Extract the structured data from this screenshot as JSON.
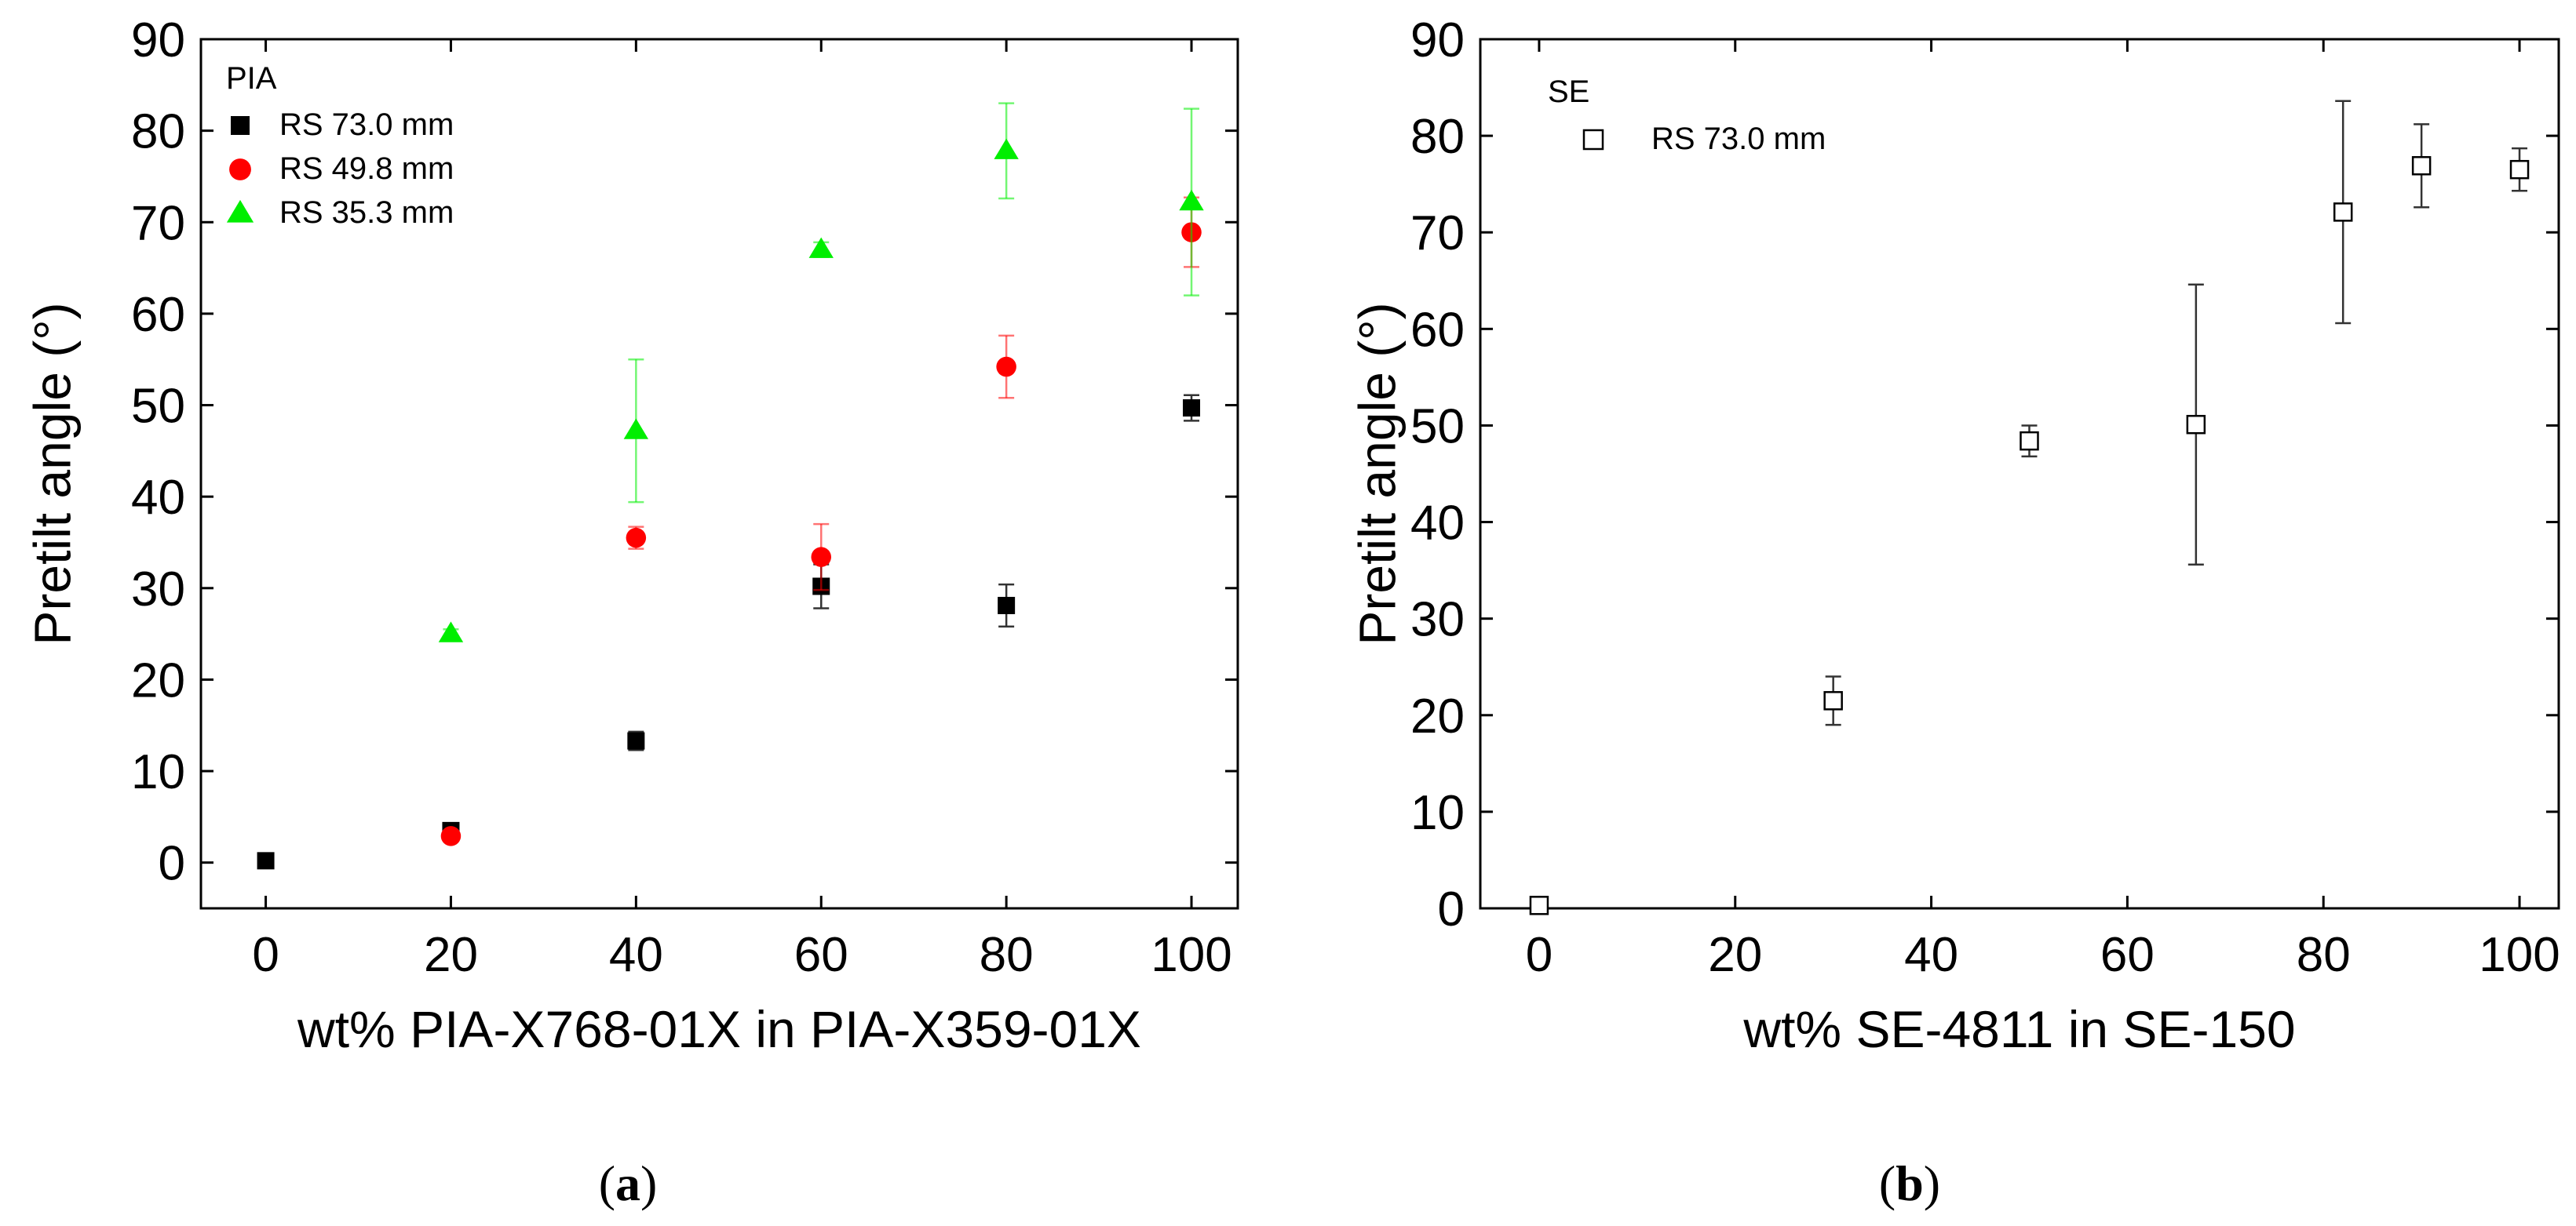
{
  "chart_data": [
    {
      "type": "scatter",
      "xlabel": "wt% PIA-X768-01X in PIA-X359-01X",
      "ylabel": "Pretilt angle (°)",
      "xlim": [
        -7,
        105
      ],
      "ylim": [
        -5,
        90
      ],
      "xticks": [
        0,
        20,
        40,
        60,
        80,
        100
      ],
      "yticks": [
        0,
        10,
        20,
        30,
        40,
        50,
        60,
        70,
        80,
        90
      ],
      "legend_title": "PIA",
      "legend_position": "top-left",
      "caption_letter": "a",
      "series": [
        {
          "name": "RS 73.0 mm",
          "marker": "square-filled",
          "color": "#000000",
          "x": [
            0,
            20,
            40,
            60,
            80,
            100
          ],
          "y": [
            0.2,
            3.5,
            13.3,
            30.2,
            28.1,
            49.7
          ],
          "err": [
            0.5,
            0.5,
            1.0,
            2.4,
            2.3,
            1.4
          ]
        },
        {
          "name": "RS 49.8 mm",
          "marker": "circle-filled",
          "color": "#ff0000",
          "x": [
            20,
            40,
            60,
            80,
            100
          ],
          "y": [
            2.9,
            35.5,
            33.4,
            54.2,
            68.9
          ],
          "err": [
            0.4,
            1.2,
            3.6,
            3.4,
            3.8
          ]
        },
        {
          "name": "RS 35.3 mm",
          "marker": "triangle-filled",
          "color": "#00ee00",
          "x": [
            20,
            40,
            60,
            80,
            100
          ],
          "y": [
            25.0,
            47.2,
            67.0,
            77.8,
            72.2
          ],
          "err": [
            0.5,
            7.8,
            0.8,
            5.2,
            10.2
          ]
        }
      ]
    },
    {
      "type": "scatter",
      "xlabel": "wt% SE-4811 in SE-150",
      "ylabel": "Pretilt angle (°)",
      "xlim": [
        -6,
        104
      ],
      "ylim": [
        0,
        90
      ],
      "xticks": [
        0,
        20,
        40,
        60,
        80,
        100
      ],
      "yticks": [
        0,
        10,
        20,
        30,
        40,
        50,
        60,
        70,
        80,
        90
      ],
      "legend_title": "SE",
      "legend_position": "top-left",
      "caption_letter": "b",
      "series": [
        {
          "name": "RS 73.0 mm",
          "marker": "square-open",
          "color": "#000000",
          "x": [
            0,
            30,
            50,
            67,
            82,
            90,
            100
          ],
          "y": [
            0.3,
            21.5,
            48.4,
            50.1,
            72.1,
            76.9,
            76.5
          ],
          "err": [
            0.6,
            2.5,
            1.6,
            14.5,
            11.5,
            4.3,
            2.2
          ]
        }
      ]
    }
  ]
}
